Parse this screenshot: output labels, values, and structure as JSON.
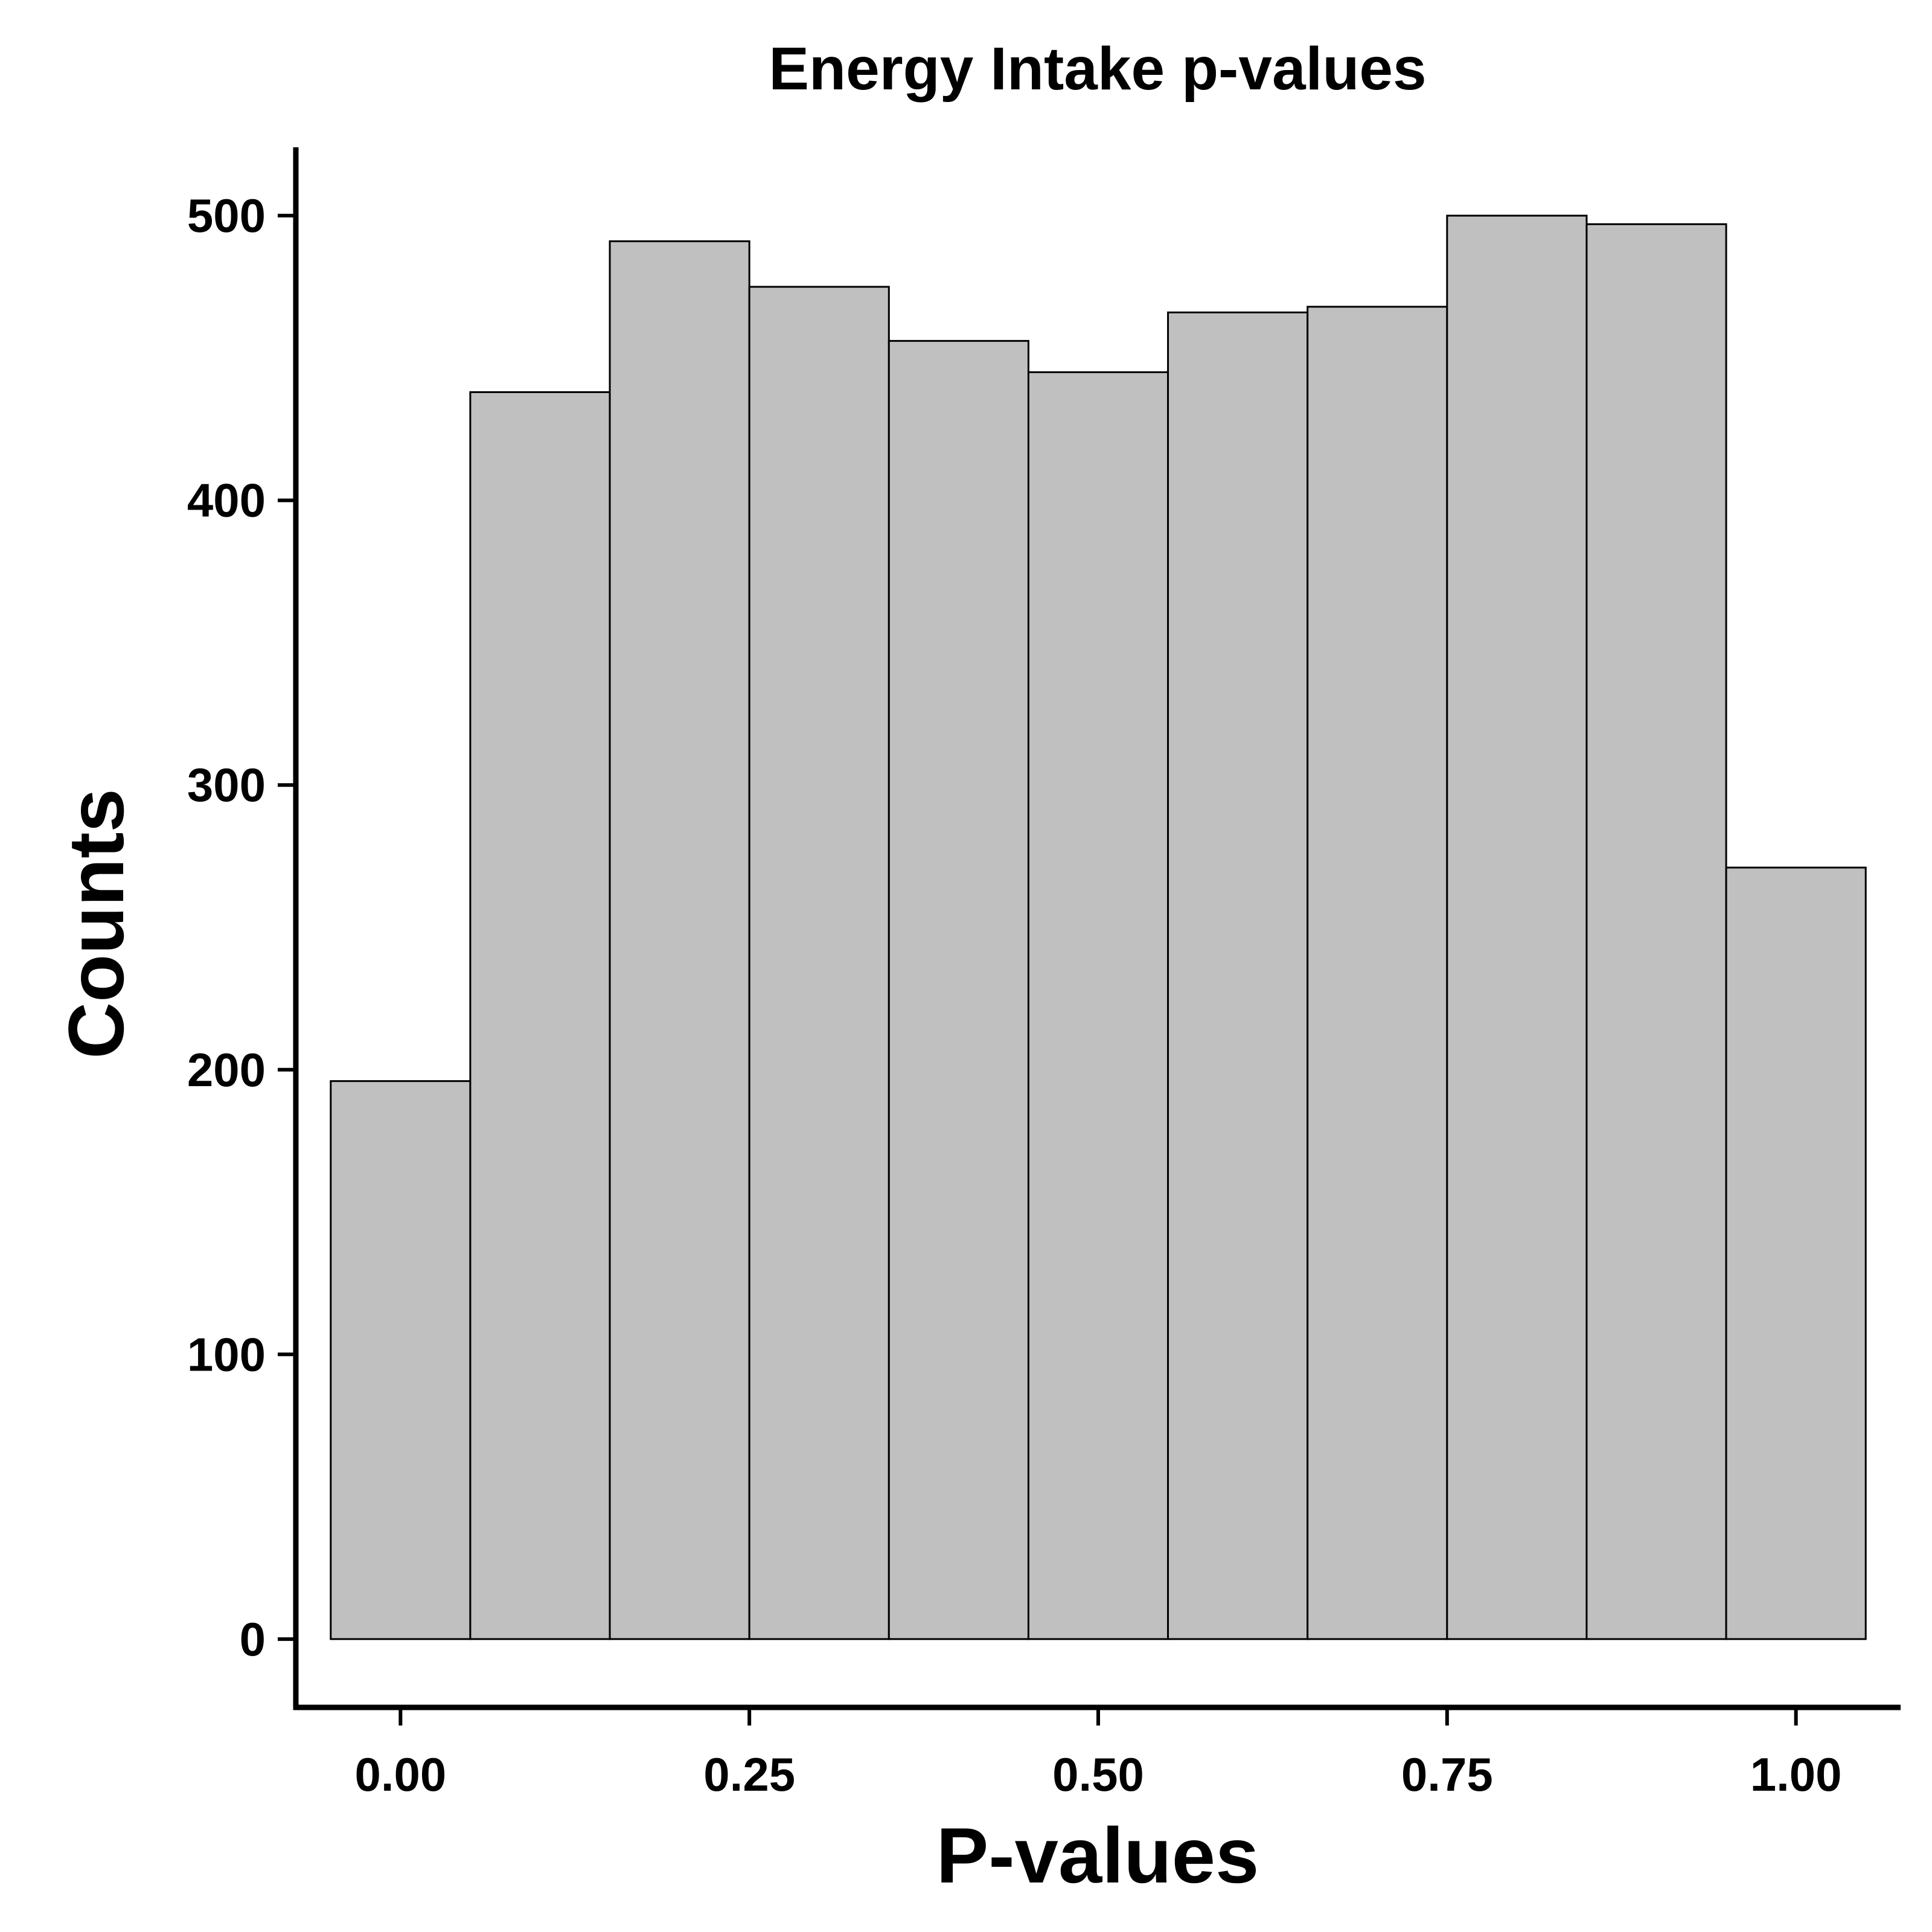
{
  "chart_data": {
    "type": "bar",
    "title": "Energy Intake p-values",
    "xlabel": "P-values",
    "ylabel": "Counts",
    "bin_width": 0.1,
    "bin_centers": [
      0.0,
      0.1,
      0.2,
      0.3,
      0.4,
      0.5,
      0.6,
      0.7,
      0.8,
      0.9,
      1.0
    ],
    "values": [
      196,
      438,
      491,
      475,
      456,
      445,
      466,
      468,
      500,
      497,
      271
    ],
    "xlim": [
      -0.075,
      1.075
    ],
    "ylim": [
      -24,
      524
    ],
    "x_ticks": [
      0.0,
      0.25,
      0.5,
      0.75,
      1.0
    ],
    "x_tick_labels": [
      "0.00",
      "0.25",
      "0.50",
      "0.75",
      "1.00"
    ],
    "y_ticks": [
      0,
      100,
      200,
      300,
      400,
      500
    ],
    "y_tick_labels": [
      "0",
      "100",
      "200",
      "300",
      "400",
      "500"
    ],
    "grid": false,
    "bar_color": "#c0c0c0",
    "bar_edge_color": "#000000"
  }
}
